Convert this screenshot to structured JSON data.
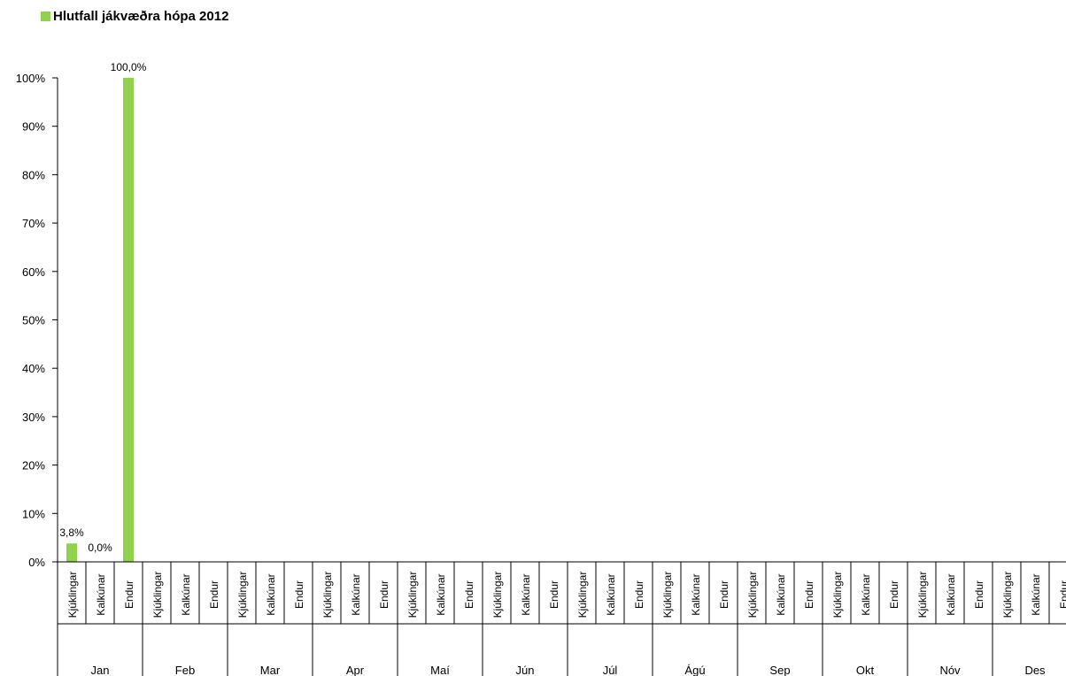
{
  "chart_data": {
    "type": "bar",
    "title": "",
    "legend": {
      "label": "Hlutfall jákvæðra hópa 2012",
      "placement": "top-left"
    },
    "series": [
      {
        "name": "Hlutfall jákvæðra hópa 2012",
        "color": "#92D050",
        "values": [
          {
            "month": "Jan",
            "category": "Kjúklingar",
            "value": 3.8,
            "label": "3,8%"
          },
          {
            "month": "Jan",
            "category": "Kalkúnar",
            "value": 0.0,
            "label": "0,0%"
          },
          {
            "month": "Jan",
            "category": "Endur",
            "value": 100.0,
            "label": "100,0%"
          }
        ]
      }
    ],
    "months": [
      "Jan",
      "Feb",
      "Mar",
      "Apr",
      "Maí",
      "Jún",
      "Júl",
      "Ágú",
      "Sep",
      "Okt",
      "Nóv",
      "Des"
    ],
    "subcategories": [
      "Kjúklingar",
      "Kalkúnar",
      "Endur"
    ],
    "y_axis": {
      "ylim": [
        0,
        100
      ],
      "ticks": [
        "0%",
        "10%",
        "20%",
        "30%",
        "40%",
        "50%",
        "60%",
        "70%",
        "80%",
        "90%",
        "100%"
      ]
    },
    "grid": false,
    "xlabel": "",
    "ylabel": ""
  }
}
